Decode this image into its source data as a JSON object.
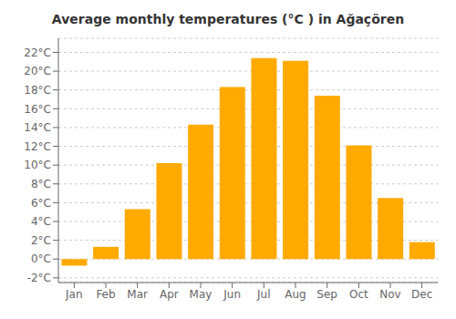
{
  "chart_data": {
    "type": "bar",
    "title": "Average monthly temperatures (°C ) in Ağaçören",
    "categories": [
      "Jan",
      "Feb",
      "Mar",
      "Apr",
      "May",
      "Jun",
      "Jul",
      "Aug",
      "Sep",
      "Oct",
      "Nov",
      "Dec"
    ],
    "values": [
      -0.7,
      1.3,
      5.3,
      10.2,
      14.3,
      18.3,
      21.4,
      21.1,
      17.4,
      12.1,
      6.5,
      1.8
    ],
    "color": "#FFAA00",
    "ylim": [
      -2.5,
      23.5
    ],
    "yticks": [
      {
        "value": -2,
        "label": "-2°C"
      },
      {
        "value": 0,
        "label": "0°C"
      },
      {
        "value": 2,
        "label": "2°C"
      },
      {
        "value": 4,
        "label": "4°C"
      },
      {
        "value": 6,
        "label": "6°C"
      },
      {
        "value": 8,
        "label": "8°C"
      },
      {
        "value": 10,
        "label": "10°C"
      },
      {
        "value": 12,
        "label": "12°C"
      },
      {
        "value": 14,
        "label": "14°C"
      },
      {
        "value": 16,
        "label": "16°C"
      },
      {
        "value": 18,
        "label": "18°C"
      },
      {
        "value": 20,
        "label": "20°C"
      },
      {
        "value": 22,
        "label": "22°C"
      }
    ],
    "grid": true
  }
}
